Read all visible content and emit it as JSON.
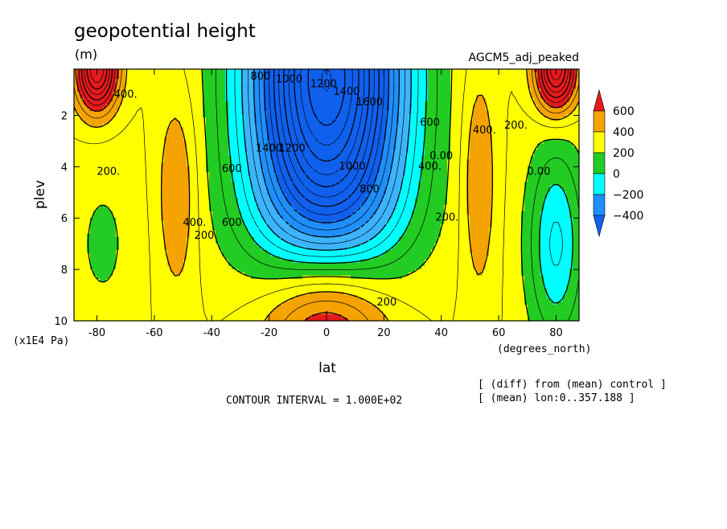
{
  "chart_data": {
    "type": "heatmap",
    "title": "geopotential height",
    "units": "(m)",
    "experiment": "AGCM5_adj_peaked",
    "xlabel": "lat",
    "x_units": "(degrees_north)",
    "ylabel": "plev",
    "y_units": "(x1E4 Pa)",
    "xlim": [
      -88,
      88
    ],
    "ylim": [
      0.2,
      10
    ],
    "y_reversed": true,
    "xticks": [
      "-80",
      "-60",
      "-40",
      "-20",
      "0",
      "20",
      "40",
      "60",
      "80"
    ],
    "xtick_values": [
      -80,
      -60,
      -40,
      -20,
      0,
      20,
      40,
      60,
      80
    ],
    "yticks": [
      "2",
      "4",
      "6",
      "8",
      "10"
    ],
    "ytick_values": [
      2,
      4,
      6,
      8,
      10
    ],
    "contour_interval_text": "CONTOUR INTERVAL = 1.000E+02",
    "notes": [
      "[ (diff) from (mean) control ]",
      "[ (mean) lon:0..357.188 ]"
    ],
    "colorbar": {
      "labels": [
        "600",
        "400",
        "200",
        "0",
        "−200",
        "−400"
      ],
      "colors": [
        "#e41a1c",
        "#f5a300",
        "#ffff00",
        "#22cc22",
        "#00ffff",
        "#1f8fff",
        "#1060ee"
      ]
    },
    "bands": [
      {
        "lo": -2000,
        "hi": -600,
        "color": "#1060ee"
      },
      {
        "lo": -600,
        "hi": -400,
        "color": "#1f8fff"
      },
      {
        "lo": -400,
        "hi": -200,
        "color": "#3cb4ff"
      },
      {
        "lo": -200,
        "hi": 0,
        "color": "#00ffff"
      },
      {
        "lo": 0,
        "hi": 200,
        "color": "#22cc22"
      },
      {
        "lo": 200,
        "hi": 400,
        "color": "#ffff00"
      },
      {
        "lo": 400,
        "hi": 600,
        "color": "#f5a300"
      },
      {
        "lo": 600,
        "hi": 3000,
        "color": "#e41a1c"
      }
    ],
    "contour_labels": [
      {
        "text": "800",
        "lat": -23,
        "plev": 0.5
      },
      {
        "text": "1000",
        "lat": -13,
        "plev": 0.6
      },
      {
        "text": "1200",
        "lat": -1,
        "plev": 0.8
      },
      {
        "text": "1400",
        "lat": 7,
        "plev": 1.1
      },
      {
        "text": "1600",
        "lat": 15,
        "plev": 1.5
      },
      {
        "text": "1400",
        "lat": -20,
        "plev": 3.3
      },
      {
        "text": "1200",
        "lat": -12,
        "plev": 3.3
      },
      {
        "text": "1000",
        "lat": 9,
        "plev": 4.0
      },
      {
        "text": "800",
        "lat": 15,
        "plev": 4.9
      },
      {
        "text": "600",
        "lat": -33,
        "plev": 4.1
      },
      {
        "text": "600",
        "lat": -33,
        "plev": 6.2
      },
      {
        "text": "200",
        "lat": 21,
        "plev": 9.3
      },
      {
        "text": "400.",
        "lat": -70,
        "plev": 1.2
      },
      {
        "text": "200.",
        "lat": -76,
        "plev": 4.2
      },
      {
        "text": "400.",
        "lat": -46,
        "plev": 6.2
      },
      {
        "text": "200.",
        "lat": -42,
        "plev": 6.7
      },
      {
        "text": "600",
        "lat": 36,
        "plev": 2.3
      },
      {
        "text": "400.",
        "lat": 36,
        "plev": 4.0
      },
      {
        "text": "0.00",
        "lat": 40,
        "plev": 3.6
      },
      {
        "text": "200.",
        "lat": 42,
        "plev": 6.0
      },
      {
        "text": "400.",
        "lat": 55,
        "plev": 2.6
      },
      {
        "text": "200.",
        "lat": 66,
        "plev": 2.4
      },
      {
        "text": "0.00",
        "lat": 74,
        "plev": 4.2
      }
    ]
  }
}
